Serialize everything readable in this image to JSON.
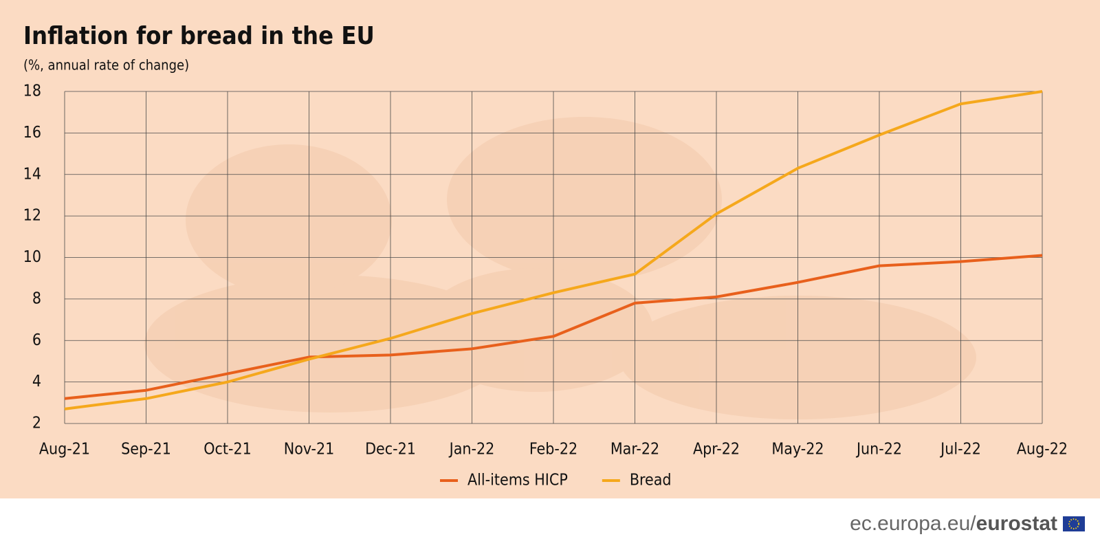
{
  "chart_data": {
    "type": "line",
    "title": "Inflation for bread in the EU",
    "subtitle": "(%, annual rate of change)",
    "categories": [
      "Aug-21",
      "Sep-21",
      "Oct-21",
      "Nov-21",
      "Dec-21",
      "Jan-22",
      "Feb-22",
      "Mar-22",
      "Apr-22",
      "May-22",
      "Jun-22",
      "Jul-22",
      "Aug-22"
    ],
    "series": [
      {
        "name": "All-items HICP",
        "color": "#e8601c",
        "values": [
          3.2,
          3.6,
          4.4,
          5.2,
          5.3,
          5.6,
          6.2,
          7.8,
          8.1,
          8.8,
          9.6,
          9.8,
          10.1
        ]
      },
      {
        "name": "Bread",
        "color": "#f5a81c",
        "values": [
          2.7,
          3.2,
          4.0,
          5.1,
          6.1,
          7.3,
          8.3,
          9.2,
          12.1,
          14.3,
          15.9,
          17.4,
          18.0
        ]
      }
    ],
    "ylim": [
      2,
      18
    ],
    "yticks": [
      2,
      4,
      6,
      8,
      10,
      12,
      14,
      16,
      18
    ],
    "grid": true,
    "legend": "bottom"
  },
  "footer": {
    "site": "ec.europa.eu/",
    "brand": "eurostat"
  }
}
